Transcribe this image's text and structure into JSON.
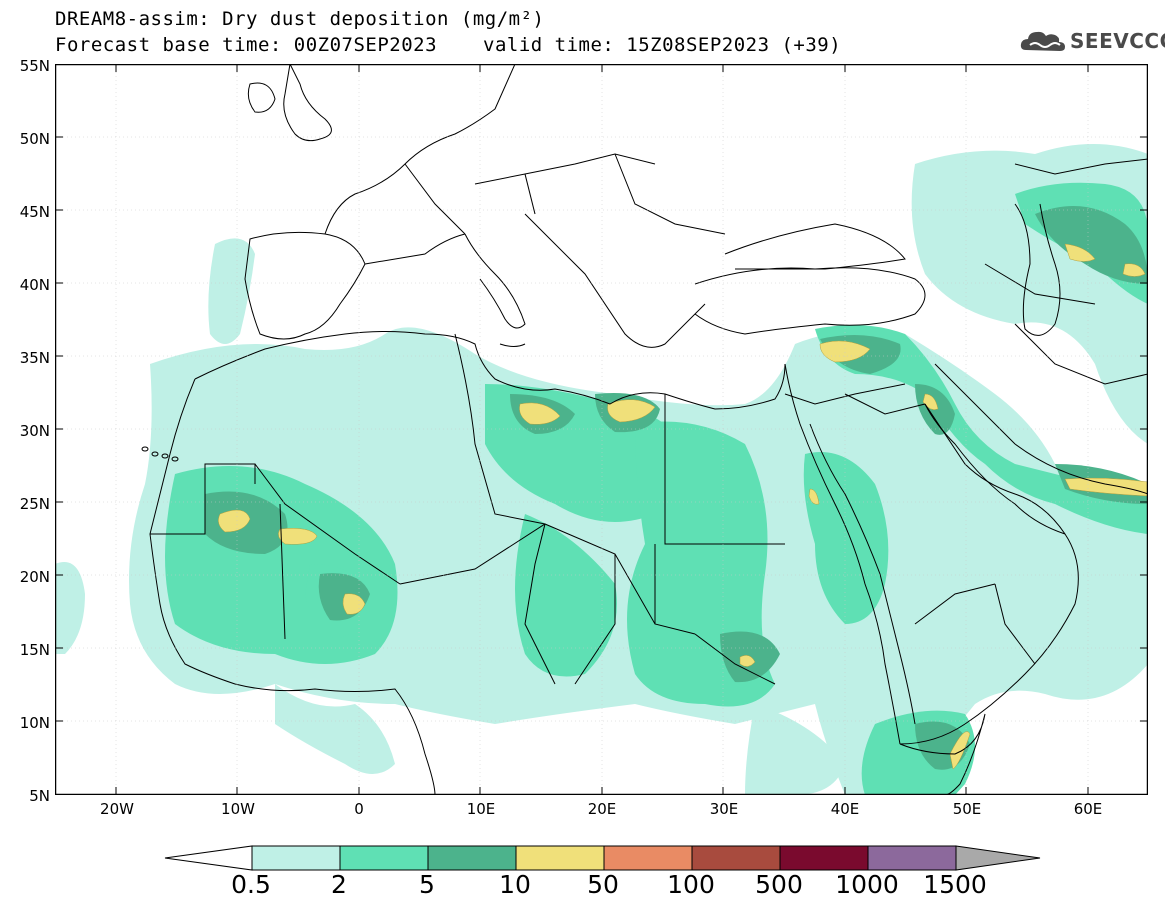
{
  "header": {
    "title_line1": "DREAM8-assim: Dry dust deposition (mg/m²)",
    "forecast_base": "Forecast base time: 00Z07SEP2023",
    "valid_time": "valid time: 15Z08SEP2023 (+39)"
  },
  "logo": {
    "text": "SEEVCCC",
    "icon": "cloud-logo-icon"
  },
  "axes": {
    "lat_labels": [
      "55N",
      "50N",
      "45N",
      "40N",
      "35N",
      "30N",
      "25N",
      "20N",
      "15N",
      "10N",
      "5N"
    ],
    "lon_labels": [
      "20W",
      "10W",
      "0",
      "10E",
      "20E",
      "30E",
      "40E",
      "50E",
      "60E"
    ],
    "lon_range": [
      -25,
      65
    ],
    "lat_range": [
      5,
      55
    ]
  },
  "colorbar": {
    "colors": [
      "#ffffff",
      "#bff0e6",
      "#5fe0b4",
      "#4cb38c",
      "#f0e07a",
      "#e98b64",
      "#a84b3e",
      "#7a0a2e",
      "#8c699c",
      "#a9a9a9"
    ],
    "labels": [
      "0.5",
      "2",
      "5",
      "10",
      "50",
      "100",
      "500",
      "1000",
      "1500"
    ]
  }
}
